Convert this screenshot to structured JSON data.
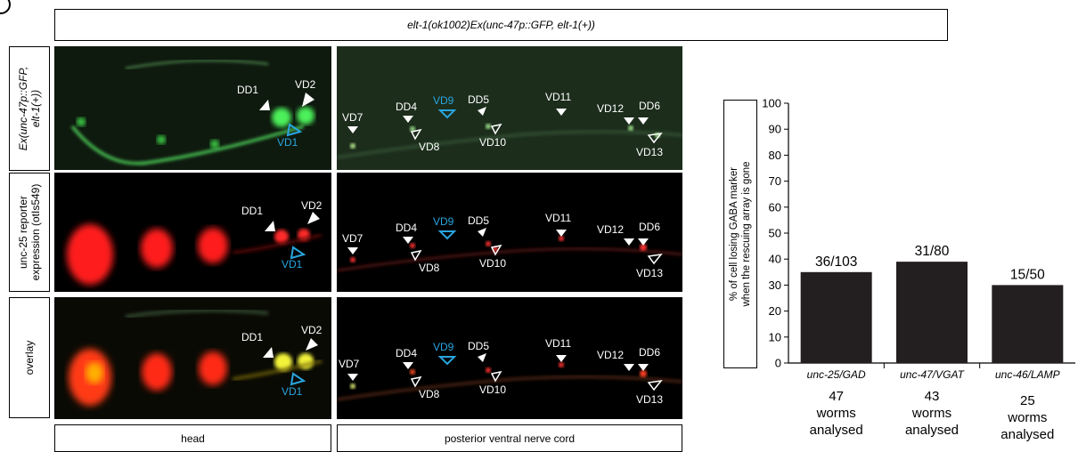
{
  "figure": {
    "header": "elt-1(ok1002)Ex(unc-47p::GFP, elt-1(+))",
    "rows": [
      {
        "label_lines": [
          "Ex(unc-47p::GFP,",
          "elt-1(+))"
        ]
      },
      {
        "label_lines": [
          "unc-25 reporter",
          "expression (otIs549)"
        ]
      },
      {
        "label_lines": [
          "overlay"
        ]
      }
    ],
    "columns": [
      "head",
      "posterior ventral nerve cord"
    ],
    "head_labels": {
      "dd1": "DD1",
      "vd2": "VD2",
      "vd1": "VD1"
    },
    "vnc_labels": {
      "vd7": "VD7",
      "dd4": "DD4",
      "vd9": "VD9",
      "dd5": "DD5",
      "vd8": "VD8",
      "vd10": "VD10",
      "vd11": "VD11",
      "vd12": "VD12",
      "dd6": "DD6",
      "vd13": "VD13"
    },
    "colors": {
      "gfp": "#3fd94a",
      "red": "#ff2020",
      "yellow": "#f2f23a",
      "blue_label": "#29a6df",
      "bar": "#231f20"
    }
  },
  "chart_data": {
    "type": "bar",
    "ylabel_lines": [
      "% of cell losing GABA marker",
      "when the rescuing array is gone"
    ],
    "ylim": [
      0,
      100
    ],
    "yticks": [
      0,
      10,
      20,
      30,
      40,
      50,
      60,
      70,
      80,
      90,
      100
    ],
    "categories": [
      "unc-25/GAD",
      "unc-47/VGAT",
      "unc-46/LAMP"
    ],
    "values": [
      35,
      39,
      30
    ],
    "bar_labels": [
      "36/103",
      "31/80",
      "15/50"
    ],
    "worm_counts": [
      [
        "47",
        "worms",
        "analysed"
      ],
      [
        "43",
        "worms",
        "analysed"
      ],
      [
        "25",
        "worms",
        "analysed"
      ]
    ]
  }
}
